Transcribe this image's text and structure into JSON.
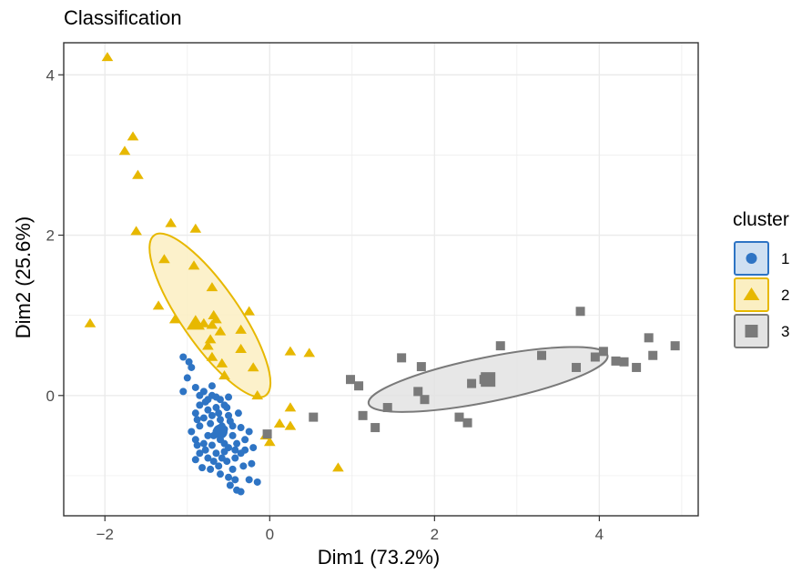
{
  "chart_data": {
    "type": "scatter",
    "title": "Classification",
    "xlabel": "Dim1 (73.2%)",
    "ylabel": "Dim2 (25.6%)",
    "xlim": [
      -2.5,
      5.2
    ],
    "ylim": [
      -1.5,
      4.4
    ],
    "xticks": [
      -2,
      0,
      2,
      4
    ],
    "yticks": [
      0,
      2,
      4
    ],
    "xtick_labels": [
      "−2",
      "0",
      "2",
      "4"
    ],
    "ytick_labels": [
      "0",
      "2",
      "4"
    ],
    "grid": true,
    "legend": {
      "title": "cluster",
      "position": "right"
    },
    "series": [
      {
        "name": "1",
        "color": "#2e74c4",
        "marker": "circle",
        "points": [
          [
            -1.05,
            0.48
          ],
          [
            -0.98,
            0.42
          ],
          [
            -0.95,
            0.35
          ],
          [
            -1.0,
            0.22
          ],
          [
            -1.05,
            0.05
          ],
          [
            -0.9,
            0.1
          ],
          [
            -0.85,
            0.0
          ],
          [
            -0.8,
            0.05
          ],
          [
            -0.75,
            -0.05
          ],
          [
            -0.7,
            0.0
          ],
          [
            -0.65,
            -0.02
          ],
          [
            -0.6,
            -0.05
          ],
          [
            -0.5,
            -0.02
          ],
          [
            -0.55,
            -0.12
          ],
          [
            -0.65,
            -0.15
          ],
          [
            -0.75,
            -0.18
          ],
          [
            -0.85,
            -0.12
          ],
          [
            -0.9,
            -0.22
          ],
          [
            -0.8,
            -0.28
          ],
          [
            -0.7,
            -0.25
          ],
          [
            -0.6,
            -0.3
          ],
          [
            -0.5,
            -0.25
          ],
          [
            -0.45,
            -0.38
          ],
          [
            -0.55,
            -0.42
          ],
          [
            -0.65,
            -0.45
          ],
          [
            -0.75,
            -0.5
          ],
          [
            -0.85,
            -0.38
          ],
          [
            -0.9,
            -0.55
          ],
          [
            -0.8,
            -0.6
          ],
          [
            -0.7,
            -0.62
          ],
          [
            -0.6,
            -0.55
          ],
          [
            -0.5,
            -0.65
          ],
          [
            -0.4,
            -0.6
          ],
          [
            -0.3,
            -0.55
          ],
          [
            -0.25,
            -0.45
          ],
          [
            -0.35,
            -0.4
          ],
          [
            -0.45,
            -0.5
          ],
          [
            -0.55,
            -0.7
          ],
          [
            -0.65,
            -0.72
          ],
          [
            -0.75,
            -0.78
          ],
          [
            -0.85,
            -0.72
          ],
          [
            -0.9,
            -0.8
          ],
          [
            -0.82,
            -0.9
          ],
          [
            -0.72,
            -0.92
          ],
          [
            -0.62,
            -0.88
          ],
          [
            -0.52,
            -0.82
          ],
          [
            -0.42,
            -0.78
          ],
          [
            -0.35,
            -0.72
          ],
          [
            -0.3,
            -0.68
          ],
          [
            -0.2,
            -0.65
          ],
          [
            -0.6,
            -0.98
          ],
          [
            -0.5,
            -1.02
          ],
          [
            -0.42,
            -1.05
          ],
          [
            -0.48,
            -1.12
          ],
          [
            -0.4,
            -1.18
          ],
          [
            -0.35,
            -1.2
          ],
          [
            -0.25,
            -1.05
          ],
          [
            -0.15,
            -1.08
          ],
          [
            -0.55,
            -0.6
          ],
          [
            -0.68,
            -0.5
          ],
          [
            -0.72,
            -0.35
          ],
          [
            -0.62,
            -0.22
          ],
          [
            -0.52,
            -0.15
          ],
          [
            -0.78,
            -0.08
          ],
          [
            -0.88,
            -0.3
          ],
          [
            -0.95,
            -0.45
          ],
          [
            -0.58,
            -0.38
          ],
          [
            -0.48,
            -0.32
          ],
          [
            -0.38,
            -0.22
          ],
          [
            -0.68,
            -0.82
          ],
          [
            -0.58,
            -0.78
          ],
          [
            -0.45,
            -0.92
          ],
          [
            -0.32,
            -0.88
          ],
          [
            -0.22,
            -0.85
          ],
          [
            -0.78,
            -0.68
          ],
          [
            -0.88,
            -0.62
          ],
          [
            -0.7,
            0.12
          ],
          [
            -0.42,
            -0.68
          ]
        ]
      },
      {
        "name": "2",
        "color": "#e7b800",
        "marker": "triangle",
        "points": [
          [
            -1.97,
            4.22
          ],
          [
            -1.66,
            3.23
          ],
          [
            -1.76,
            3.05
          ],
          [
            -1.6,
            2.75
          ],
          [
            -1.62,
            2.05
          ],
          [
            -1.2,
            2.15
          ],
          [
            -0.9,
            2.08
          ],
          [
            -1.28,
            1.7
          ],
          [
            -0.92,
            1.62
          ],
          [
            -0.7,
            1.35
          ],
          [
            -1.35,
            1.12
          ],
          [
            -1.15,
            0.95
          ],
          [
            -0.25,
            1.05
          ],
          [
            -0.35,
            0.82
          ],
          [
            -0.65,
            0.95
          ],
          [
            -0.6,
            0.8
          ],
          [
            -0.7,
            0.88
          ],
          [
            -0.72,
            0.7
          ],
          [
            -0.75,
            0.62
          ],
          [
            -0.7,
            0.48
          ],
          [
            -0.35,
            0.58
          ],
          [
            -0.58,
            0.4
          ],
          [
            -0.2,
            0.35
          ],
          [
            -0.15,
            0.0
          ],
          [
            0.25,
            0.55
          ],
          [
            0.48,
            0.53
          ],
          [
            0.25,
            -0.15
          ],
          [
            0.12,
            -0.35
          ],
          [
            0.25,
            -0.38
          ],
          [
            -0.05,
            -0.5
          ],
          [
            0.0,
            -0.58
          ],
          [
            0.83,
            -0.9
          ],
          [
            -2.18,
            0.9
          ],
          [
            -0.55,
            0.25
          ],
          [
            -0.8,
            0.9
          ],
          [
            -0.68,
            1.0
          ]
        ]
      },
      {
        "name": "3",
        "color": "#7a7a7a",
        "marker": "square",
        "points": [
          [
            0.53,
            -0.27
          ],
          [
            0.98,
            0.2
          ],
          [
            1.08,
            0.12
          ],
          [
            1.13,
            -0.25
          ],
          [
            1.28,
            -0.4
          ],
          [
            1.43,
            -0.15
          ],
          [
            1.6,
            0.47
          ],
          [
            1.8,
            0.05
          ],
          [
            1.88,
            -0.05
          ],
          [
            1.84,
            0.36
          ],
          [
            2.3,
            -0.27
          ],
          [
            2.4,
            -0.34
          ],
          [
            2.45,
            0.15
          ],
          [
            2.6,
            0.2
          ],
          [
            2.68,
            0.22
          ],
          [
            2.8,
            0.62
          ],
          [
            3.3,
            0.5
          ],
          [
            3.72,
            0.35
          ],
          [
            3.77,
            1.05
          ],
          [
            3.95,
            0.48
          ],
          [
            4.05,
            0.55
          ],
          [
            4.2,
            0.43
          ],
          [
            4.3,
            0.42
          ],
          [
            4.45,
            0.35
          ],
          [
            4.6,
            0.72
          ],
          [
            4.65,
            0.5
          ],
          [
            4.92,
            0.62
          ],
          [
            -0.03,
            -0.48
          ]
        ]
      }
    ],
    "centroids": [
      {
        "cluster": "1",
        "x": -0.6,
        "y": -0.45
      },
      {
        "cluster": "2",
        "x": -0.9,
        "y": 0.9
      },
      {
        "cluster": "3",
        "x": 2.65,
        "y": 0.2
      }
    ],
    "ellipses": [
      {
        "cluster": "2",
        "points": [
          [
            -1.4,
            2.0
          ],
          [
            -0.05,
            0.0
          ]
        ],
        "minor_extent": 0.35
      },
      {
        "cluster": "3",
        "points": [
          [
            1.2,
            -0.1
          ],
          [
            4.1,
            0.5
          ]
        ],
        "minor_extent": 0.27
      }
    ],
    "legend_items": [
      {
        "label": "1",
        "marker": "circle",
        "color": "#2e74c4",
        "fill": "#cfe0f2"
      },
      {
        "label": "2",
        "marker": "triangle",
        "color": "#e7b800",
        "fill": "#fbefc2"
      },
      {
        "label": "3",
        "marker": "square",
        "color": "#7a7a7a",
        "fill": "#e3e3e3"
      }
    ]
  }
}
